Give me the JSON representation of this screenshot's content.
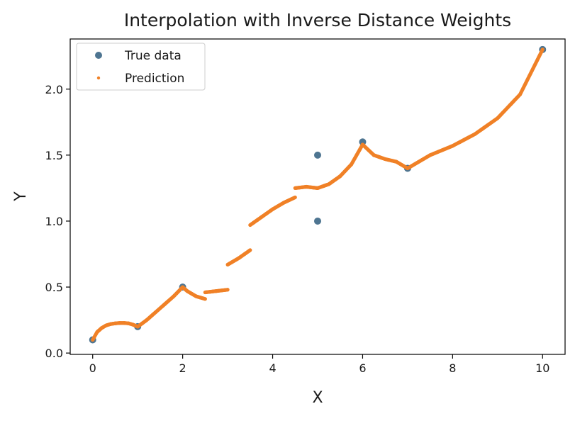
{
  "chart_data": {
    "type": "scatter",
    "title": "Interpolation with Inverse Distance Weights",
    "xlabel": "X",
    "ylabel": "Y",
    "xlim": [
      -0.5,
      10.5
    ],
    "ylim": [
      -0.01,
      2.38
    ],
    "xticks": [
      0,
      2,
      4,
      6,
      8,
      10
    ],
    "yticks": [
      0.0,
      0.5,
      1.0,
      1.5,
      2.0
    ],
    "xtick_labels": [
      "0",
      "2",
      "4",
      "6",
      "8",
      "10"
    ],
    "ytick_labels": [
      "0.0",
      "0.5",
      "1.0",
      "1.5",
      "2.0"
    ],
    "grid": false,
    "legend": "top-left",
    "series": [
      {
        "name": "True data",
        "kind": "scatter",
        "color": "#4e7591",
        "x": [
          0,
          1,
          2,
          5,
          5,
          6,
          7,
          10
        ],
        "y": [
          0.1,
          0.2,
          0.5,
          1.5,
          1.0,
          1.6,
          1.4,
          2.3
        ]
      },
      {
        "name": "Prediction",
        "kind": "scatter",
        "color": "#f08127",
        "segments": [
          {
            "x": [
              0.0,
              0.1,
              0.2,
              0.3,
              0.4,
              0.5,
              0.6,
              0.7,
              0.8,
              0.9,
              1.0
            ],
            "y": [
              0.1,
              0.16,
              0.19,
              0.21,
              0.22,
              0.225,
              0.228,
              0.228,
              0.225,
              0.215,
              0.2
            ]
          },
          {
            "x": [
              1.0,
              1.2,
              1.4,
              1.6,
              1.8,
              2.0
            ],
            "y": [
              0.2,
              0.25,
              0.31,
              0.37,
              0.43,
              0.5
            ]
          },
          {
            "x": [
              2.0,
              2.1,
              2.2,
              2.3,
              2.4,
              2.5
            ],
            "y": [
              0.5,
              0.47,
              0.45,
              0.43,
              0.42,
              0.41
            ]
          },
          {
            "x": [
              2.5,
              2.75,
              3.0
            ],
            "y": [
              0.46,
              0.47,
              0.48
            ]
          },
          {
            "x": [
              3.0,
              3.25,
              3.5
            ],
            "y": [
              0.67,
              0.72,
              0.78
            ]
          },
          {
            "x": [
              3.5,
              3.75,
              4.0,
              4.25,
              4.5
            ],
            "y": [
              0.97,
              1.03,
              1.09,
              1.14,
              1.18
            ]
          },
          {
            "x": [
              4.5,
              4.75,
              5.0,
              5.25,
              5.5,
              5.75,
              6.0
            ],
            "y": [
              1.25,
              1.26,
              1.25,
              1.28,
              1.34,
              1.43,
              1.58
            ]
          },
          {
            "x": [
              6.0,
              6.25,
              6.5,
              6.75,
              7.0
            ],
            "y": [
              1.58,
              1.5,
              1.47,
              1.45,
              1.4
            ]
          },
          {
            "x": [
              7.0,
              7.5,
              8.0,
              8.5,
              9.0,
              9.5,
              10.0
            ],
            "y": [
              1.4,
              1.5,
              1.57,
              1.66,
              1.78,
              1.96,
              2.3
            ]
          }
        ]
      }
    ]
  }
}
